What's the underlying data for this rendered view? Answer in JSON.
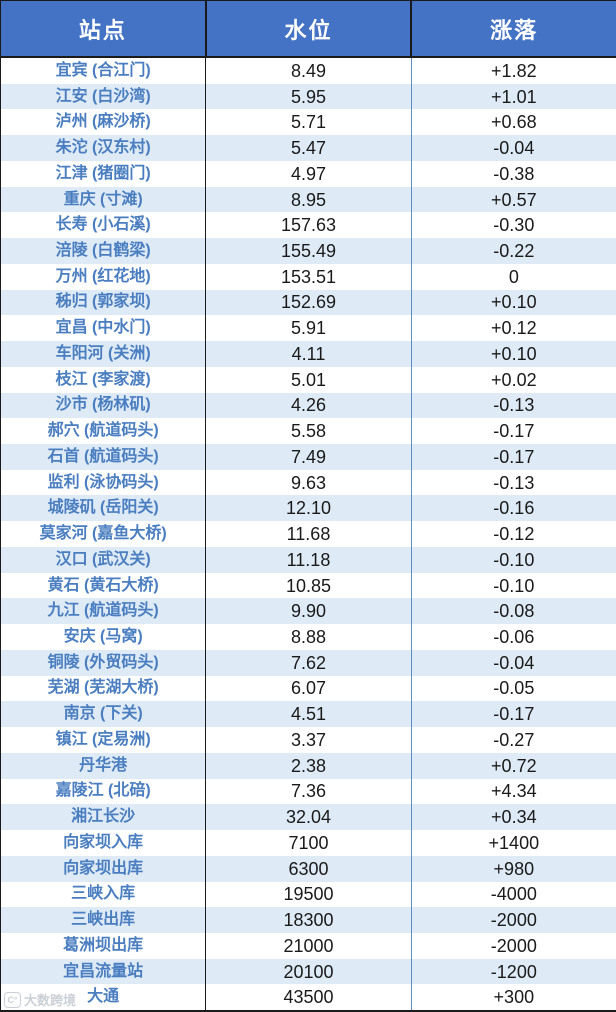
{
  "chart_data": {
    "type": "table",
    "columns": [
      "站点",
      "水位",
      "涨落"
    ],
    "rows": [
      {
        "station": "宜宾 (合江门)",
        "level": "8.49",
        "change": "+1.82"
      },
      {
        "station": "江安 (白沙湾)",
        "level": "5.95",
        "change": "+1.01"
      },
      {
        "station": "泸州 (麻沙桥)",
        "level": "5.71",
        "change": "+0.68"
      },
      {
        "station": "朱沱 (汉东村)",
        "level": "5.47",
        "change": "-0.04"
      },
      {
        "station": "江津 (猪圈门)",
        "level": "4.97",
        "change": "-0.38"
      },
      {
        "station": "重庆 (寸滩)",
        "level": "8.95",
        "change": "+0.57"
      },
      {
        "station": "长寿 (小石溪)",
        "level": "157.63",
        "change": "-0.30"
      },
      {
        "station": "涪陵 (白鹤梁)",
        "level": "155.49",
        "change": "-0.22"
      },
      {
        "station": "万州 (红花地)",
        "level": "153.51",
        "change": "0"
      },
      {
        "station": "秭归 (郭家坝)",
        "level": "152.69",
        "change": "+0.10"
      },
      {
        "station": "宜昌 (中水门)",
        "level": "5.91",
        "change": "+0.12"
      },
      {
        "station": "车阳河 (关洲)",
        "level": "4.11",
        "change": "+0.10"
      },
      {
        "station": "枝江 (李家渡)",
        "level": "5.01",
        "change": "+0.02"
      },
      {
        "station": "沙市 (杨林矶)",
        "level": "4.26",
        "change": "-0.13"
      },
      {
        "station": "郝穴 (航道码头)",
        "level": "5.58",
        "change": "-0.17"
      },
      {
        "station": "石首 (航道码头)",
        "level": "7.49",
        "change": "-0.17"
      },
      {
        "station": "监利 (泳协码头)",
        "level": "9.63",
        "change": "-0.13"
      },
      {
        "station": "城陵矶 (岳阳关)",
        "level": "12.10",
        "change": "-0.16"
      },
      {
        "station": "莫家河 (嘉鱼大桥)",
        "level": "11.68",
        "change": "-0.12"
      },
      {
        "station": "汉口 (武汉关)",
        "level": "11.18",
        "change": "-0.10"
      },
      {
        "station": "黄石 (黄石大桥)",
        "level": "10.85",
        "change": "-0.10"
      },
      {
        "station": "九江 (航道码头)",
        "level": "9.90",
        "change": "-0.08"
      },
      {
        "station": "安庆 (马窝)",
        "level": "8.88",
        "change": "-0.06"
      },
      {
        "station": "铜陵 (外贸码头)",
        "level": "7.62",
        "change": "-0.04"
      },
      {
        "station": "芜湖 (芜湖大桥)",
        "level": "6.07",
        "change": "-0.05"
      },
      {
        "station": "南京 (下关)",
        "level": "4.51",
        "change": "-0.17"
      },
      {
        "station": "镇江 (定易洲)",
        "level": "3.37",
        "change": "-0.27"
      },
      {
        "station": "丹华港",
        "level": "2.38",
        "change": "+0.72"
      },
      {
        "station": "嘉陵江 (北碚)",
        "level": "7.36",
        "change": "+4.34"
      },
      {
        "station": "湘江长沙",
        "level": "32.04",
        "change": "+0.34"
      },
      {
        "station": "向家坝入库",
        "level": "7100",
        "change": "+1400"
      },
      {
        "station": "向家坝出库",
        "level": "6300",
        "change": "+980"
      },
      {
        "station": "三峡入库",
        "level": "19500",
        "change": "-4000"
      },
      {
        "station": "三峡出库",
        "level": "18300",
        "change": "-2000"
      },
      {
        "station": "葛洲坝出库",
        "level": "21000",
        "change": "-2000"
      },
      {
        "station": "宜昌流量站",
        "level": "20100",
        "change": "-1200"
      },
      {
        "station": "大通",
        "level": "43500",
        "change": "+300"
      }
    ]
  },
  "watermark": {
    "logo": "C°",
    "text": "大数跨境"
  },
  "colors": {
    "header_bg": "#4472C4",
    "header_text": "#FFFFFF",
    "row_alt_bg": "#DEEAF6",
    "station_text": "#4A7EC0",
    "value_text": "#1A1A1A",
    "body_divider_blue": "#5B8DC0",
    "border_black": "#1A1A1A"
  }
}
